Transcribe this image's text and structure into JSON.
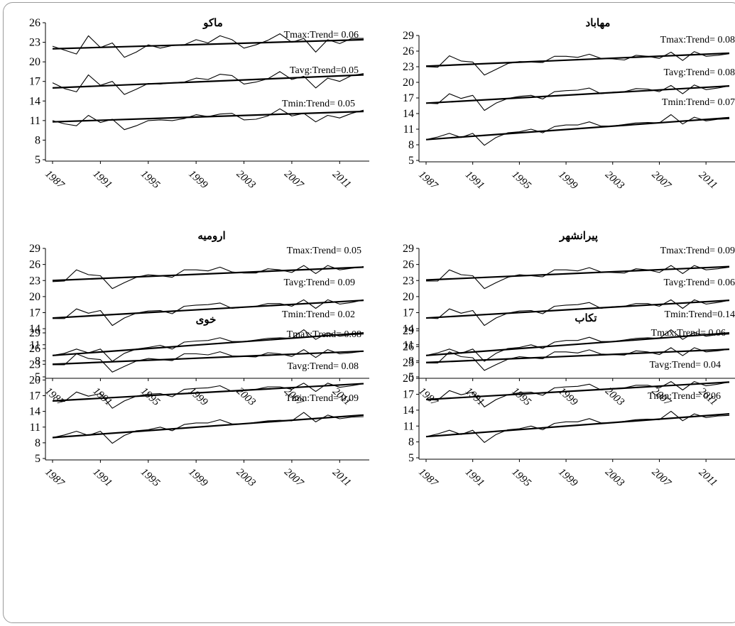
{
  "chart_data": [
    {
      "type": "line",
      "title": "ماکو",
      "ylim": [
        5,
        26
      ],
      "yticks": [
        26,
        23,
        20,
        17,
        14,
        11,
        8,
        5
      ],
      "xticks": [
        "1987",
        "1991",
        "1995",
        "1999",
        "2003",
        "2007",
        "2011"
      ],
      "x": [
        1987,
        1988,
        1989,
        1990,
        1991,
        1992,
        1993,
        1994,
        1995,
        1996,
        1997,
        1998,
        1999,
        2000,
        2001,
        2002,
        2003,
        2004,
        2005,
        2006,
        2007,
        2008,
        2009,
        2010,
        2011,
        2012,
        2013
      ],
      "series": [
        {
          "name": "Tmax",
          "label": "Tmax:Trend= 0.06",
          "values": [
            22.4,
            21.8,
            21.2,
            24.0,
            22.2,
            22.9,
            20.7,
            21.5,
            22.6,
            22.1,
            22.5,
            22.6,
            23.4,
            22.9,
            24.0,
            23.4,
            22.1,
            22.6,
            23.3,
            24.3,
            23.0,
            23.6,
            21.5,
            23.4,
            22.8,
            23.6,
            23.6
          ],
          "trend": [
            22.0,
            23.4
          ]
        },
        {
          "name": "Tavg",
          "label": "Tavg:Trend=0.05",
          "values": [
            16.8,
            15.9,
            15.4,
            18.0,
            16.4,
            17.0,
            15.0,
            15.8,
            16.7,
            16.6,
            16.8,
            16.9,
            17.5,
            17.3,
            18.1,
            17.9,
            16.6,
            16.9,
            17.4,
            18.5,
            17.3,
            17.8,
            16.0,
            17.5,
            17.0,
            17.9,
            18.2
          ],
          "trend": [
            16.0,
            18.0
          ]
        },
        {
          "name": "Tmin",
          "label": "Tmin:Trend= 0.05",
          "values": [
            11.0,
            10.5,
            10.2,
            11.8,
            10.7,
            11.2,
            9.6,
            10.2,
            11.0,
            11.1,
            11.0,
            11.3,
            11.9,
            11.6,
            12.0,
            12.1,
            11.1,
            11.2,
            11.7,
            12.8,
            11.7,
            12.1,
            10.8,
            11.8,
            11.4,
            12.1,
            12.6
          ],
          "trend": [
            10.8,
            12.4
          ]
        }
      ]
    },
    {
      "type": "line",
      "title": "مهاباد",
      "ylim": [
        5,
        29
      ],
      "yticks": [
        29,
        26,
        23,
        20,
        17,
        14,
        11,
        8,
        5
      ],
      "xticks": [
        "1987",
        "1991",
        "1995",
        "1999",
        "2003",
        "2007",
        "2011"
      ],
      "x": [
        1987,
        1988,
        1989,
        1990,
        1991,
        1992,
        1993,
        1994,
        1995,
        1996,
        1997,
        1998,
        1999,
        2000,
        2001,
        2002,
        2003,
        2004,
        2005,
        2006,
        2007,
        2008,
        2009,
        2010,
        2011,
        2012,
        2013
      ],
      "series": [
        {
          "name": "Tmax",
          "label": "Tmax:Trend= 0.08",
          "values": [
            23.0,
            22.9,
            25.1,
            24.1,
            23.9,
            21.4,
            22.5,
            23.6,
            24.0,
            23.9,
            23.8,
            25.0,
            25.0,
            24.8,
            25.4,
            24.6,
            24.5,
            24.3,
            25.2,
            25.0,
            24.6,
            25.8,
            24.2,
            25.9,
            25.0,
            25.2,
            25.5
          ],
          "trend": [
            23.1,
            25.6
          ]
        },
        {
          "name": "Tavg",
          "label": "Tavg:Trend= 0.08",
          "values": [
            16.0,
            15.9,
            17.8,
            16.9,
            17.5,
            14.6,
            16.0,
            16.9,
            17.3,
            17.5,
            16.8,
            18.2,
            18.4,
            18.5,
            18.9,
            17.8,
            18.1,
            18.2,
            18.8,
            18.7,
            18.2,
            19.4,
            17.8,
            19.5,
            18.6,
            18.9,
            19.3
          ],
          "trend": [
            16.0,
            19.3
          ]
        },
        {
          "name": "Tmin",
          "label": "Tmin:Trend= 0.07",
          "values": [
            9.0,
            9.5,
            10.2,
            9.4,
            10.2,
            7.9,
            9.4,
            10.3,
            10.5,
            11.0,
            10.3,
            11.5,
            11.8,
            11.8,
            12.4,
            11.6,
            11.6,
            11.9,
            12.2,
            12.3,
            12.2,
            13.8,
            12.0,
            13.3,
            12.6,
            12.9,
            13.0
          ],
          "trend": [
            9.0,
            13.2
          ]
        }
      ]
    },
    {
      "type": "line",
      "title": "ارومیه",
      "ylim": [
        5,
        29
      ],
      "yticks": [
        29,
        26,
        23,
        20,
        17,
        14,
        11,
        8,
        5
      ],
      "xticks": [
        "1987",
        "1991",
        "1995",
        "1999",
        "2003",
        "2007",
        "2011"
      ],
      "x": [
        1987,
        1988,
        1989,
        1990,
        1991,
        1992,
        1993,
        1994,
        1995,
        1996,
        1997,
        1998,
        1999,
        2000,
        2001,
        2002,
        2003,
        2004,
        2005,
        2006,
        2007,
        2008,
        2009,
        2010,
        2011,
        2012,
        2013
      ],
      "series": [
        {
          "name": "Tmax",
          "label": "Tmax:Trend= 0.05",
          "values": [
            22.8,
            22.9,
            25.0,
            24.1,
            23.9,
            21.5,
            22.6,
            23.6,
            24.1,
            23.9,
            23.6,
            25.0,
            25.0,
            24.8,
            25.5,
            24.6,
            24.4,
            24.4,
            25.2,
            25.0,
            24.5,
            25.8,
            24.3,
            25.8,
            25.0,
            25.3,
            25.6
          ],
          "trend": [
            23.0,
            25.5
          ]
        },
        {
          "name": "Tavg",
          "label": "Tavg:Trend= 0.09",
          "values": [
            15.9,
            15.9,
            17.7,
            16.9,
            17.4,
            14.6,
            16.0,
            16.9,
            17.3,
            17.4,
            16.8,
            18.2,
            18.4,
            18.5,
            18.8,
            17.8,
            18.0,
            18.2,
            18.7,
            18.7,
            18.2,
            19.4,
            17.8,
            19.4,
            18.6,
            18.9,
            19.4
          ],
          "trend": [
            16.0,
            19.3
          ]
        },
        {
          "name": "Tmin",
          "label": "Tmin:Trend= 0.02",
          "values": [
            9.0,
            9.4,
            10.2,
            9.5,
            10.2,
            7.9,
            9.4,
            10.2,
            10.5,
            10.9,
            10.2,
            11.5,
            11.7,
            11.8,
            12.3,
            11.6,
            11.6,
            11.9,
            12.2,
            12.3,
            12.2,
            13.8,
            12.0,
            13.2,
            12.6,
            12.9,
            13.0
          ],
          "trend": [
            9.0,
            13.2
          ]
        }
      ]
    },
    {
      "type": "line",
      "title": "پیرانشهر",
      "ylim": [
        5,
        29
      ],
      "yticks": [
        29,
        26,
        23,
        20,
        17,
        14,
        11,
        8,
        5
      ],
      "xticks": [
        "1987",
        "1991",
        "1995",
        "1999",
        "2003",
        "2007",
        "2011"
      ],
      "x": [
        1987,
        1988,
        1989,
        1990,
        1991,
        1992,
        1993,
        1994,
        1995,
        1996,
        1997,
        1998,
        1999,
        2000,
        2001,
        2002,
        2003,
        2004,
        2005,
        2006,
        2007,
        2008,
        2009,
        2010,
        2011,
        2012,
        2013
      ],
      "series": [
        {
          "name": "Tmax",
          "label": "Tmax:Trend= 0.09",
          "values": [
            22.9,
            22.9,
            25.0,
            24.1,
            23.9,
            21.5,
            22.6,
            23.6,
            24.1,
            23.9,
            23.7,
            25.0,
            25.0,
            24.8,
            25.4,
            24.6,
            24.5,
            24.4,
            25.2,
            25.0,
            24.5,
            25.8,
            24.3,
            25.8,
            25.0,
            25.2,
            25.5
          ],
          "trend": [
            23.1,
            25.6
          ]
        },
        {
          "name": "Tavg",
          "label": "Tavg:Trend= 0.06",
          "values": [
            16.0,
            15.9,
            17.7,
            16.9,
            17.4,
            14.6,
            16.0,
            16.9,
            17.3,
            17.4,
            16.8,
            18.2,
            18.4,
            18.5,
            18.9,
            17.8,
            18.1,
            18.2,
            18.7,
            18.7,
            18.2,
            19.4,
            17.8,
            19.4,
            18.6,
            18.9,
            19.3
          ],
          "trend": [
            16.0,
            19.3
          ]
        },
        {
          "name": "Tmin",
          "label": "Tmin:Trend=0.14",
          "values": [
            9.0,
            9.5,
            10.2,
            9.4,
            10.2,
            7.9,
            9.4,
            10.3,
            10.5,
            11.0,
            10.3,
            11.5,
            11.8,
            11.8,
            12.4,
            11.6,
            11.6,
            11.9,
            12.2,
            12.3,
            12.2,
            13.8,
            12.0,
            13.3,
            12.6,
            12.9,
            13.0
          ],
          "trend": [
            9.0,
            13.2
          ]
        }
      ]
    },
    {
      "type": "line",
      "title": "خوی",
      "ylim": [
        5,
        29
      ],
      "yticks": [
        29,
        26,
        23,
        20,
        17,
        14,
        11,
        8,
        5
      ],
      "xticks": [
        "1987",
        "1991",
        "1995",
        "1999",
        "2003",
        "2007",
        "2011"
      ],
      "x": [
        1987,
        1988,
        1989,
        1990,
        1991,
        1992,
        1993,
        1994,
        1995,
        1996,
        1997,
        1998,
        1999,
        2000,
        2001,
        2002,
        2003,
        2004,
        2005,
        2006,
        2007,
        2008,
        2009,
        2010,
        2011,
        2012,
        2013
      ],
      "series": [
        {
          "name": "Tmax",
          "label": "Tmax:Trend= 0.08",
          "values": [
            22.9,
            22.9,
            25.0,
            24.1,
            23.9,
            21.5,
            22.6,
            23.6,
            24.1,
            23.9,
            23.7,
            25.0,
            25.0,
            24.8,
            25.4,
            24.6,
            24.5,
            24.4,
            25.2,
            25.0,
            24.5,
            25.8,
            24.3,
            25.8,
            25.0,
            25.2,
            25.5
          ],
          "trend": [
            23.0,
            25.5
          ]
        },
        {
          "name": "Tavg",
          "label": "Tavg:Trend= 0.08",
          "values": [
            16.0,
            15.9,
            17.7,
            16.9,
            17.4,
            14.6,
            16.0,
            16.9,
            17.3,
            17.4,
            16.8,
            18.2,
            18.4,
            18.5,
            18.9,
            17.8,
            18.1,
            18.2,
            18.7,
            18.7,
            18.2,
            19.4,
            17.8,
            19.4,
            18.6,
            18.9,
            19.3
          ],
          "trend": [
            16.0,
            19.3
          ]
        },
        {
          "name": "Tmin",
          "label": "Tmin:Trend= 0.09",
          "values": [
            9.0,
            9.5,
            10.2,
            9.4,
            10.2,
            7.9,
            9.4,
            10.3,
            10.5,
            11.0,
            10.3,
            11.5,
            11.8,
            11.8,
            12.4,
            11.6,
            11.6,
            11.9,
            12.2,
            12.3,
            12.2,
            13.8,
            12.0,
            13.3,
            12.6,
            12.9,
            13.0
          ],
          "trend": [
            9.0,
            13.3
          ]
        }
      ]
    },
    {
      "type": "line",
      "title": "تکاب",
      "ylim": [
        5,
        29
      ],
      "yticks": [
        29,
        26,
        23,
        20,
        17,
        14,
        11,
        8,
        5
      ],
      "xticks": [
        "1987",
        "1991",
        "1995",
        "1999",
        "2003",
        "2007",
        "2011"
      ],
      "x": [
        1987,
        1988,
        1989,
        1990,
        1991,
        1992,
        1993,
        1994,
        1995,
        1996,
        1997,
        1998,
        1999,
        2000,
        2001,
        2002,
        2003,
        2004,
        2005,
        2006,
        2007,
        2008,
        2009,
        2010,
        2011,
        2012,
        2013
      ],
      "series": [
        {
          "name": "Tmax",
          "label": "Tmax:Trend= 0.06",
          "values": [
            22.9,
            22.9,
            25.0,
            24.1,
            23.9,
            21.5,
            22.6,
            23.6,
            24.1,
            23.9,
            23.7,
            25.0,
            25.0,
            24.8,
            25.4,
            24.6,
            24.5,
            24.4,
            25.2,
            25.0,
            24.5,
            25.8,
            24.3,
            25.8,
            25.0,
            25.2,
            25.5
          ],
          "trend": [
            23.0,
            25.5
          ]
        },
        {
          "name": "Tavg",
          "label": "Tavg:Trend= 0.04",
          "values": [
            16.0,
            15.9,
            17.7,
            16.9,
            17.4,
            14.6,
            16.0,
            16.9,
            17.3,
            17.4,
            16.8,
            18.2,
            18.4,
            18.5,
            18.9,
            17.8,
            18.1,
            18.2,
            18.7,
            18.7,
            18.2,
            19.4,
            17.8,
            19.4,
            18.6,
            18.9,
            19.3
          ],
          "trend": [
            16.0,
            19.3
          ]
        },
        {
          "name": "Tmin",
          "label": "Tmin:Trend= 0.06",
          "values": [
            9.0,
            9.5,
            10.2,
            9.4,
            10.2,
            7.9,
            9.4,
            10.3,
            10.5,
            11.0,
            10.3,
            11.5,
            11.8,
            11.8,
            12.4,
            11.6,
            11.6,
            11.9,
            12.2,
            12.3,
            12.2,
            13.8,
            12.0,
            13.3,
            12.6,
            12.9,
            13.0
          ],
          "trend": [
            9.0,
            13.3
          ]
        }
      ]
    }
  ]
}
